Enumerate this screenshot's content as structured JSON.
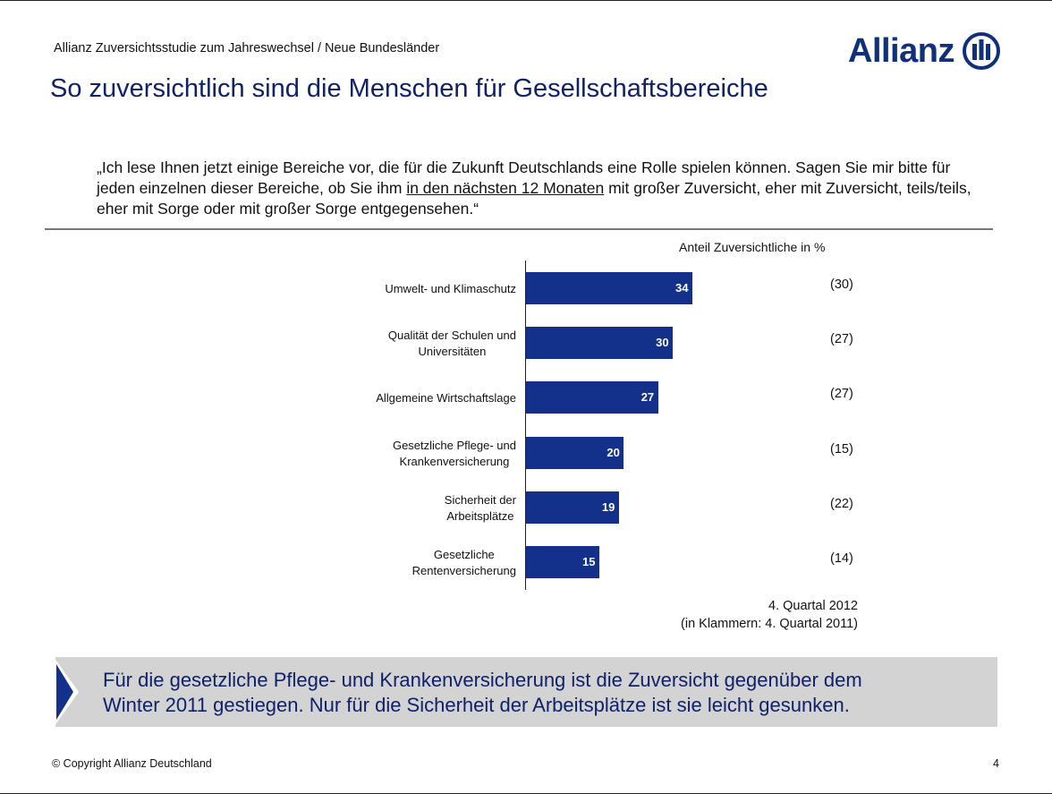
{
  "header": {
    "subtitle": "Allianz Zuversichtsstudie zum Jahreswechsel / Neue Bundesländer",
    "title": "So zuversichtlich sind die Menschen für Gesellschaftsbereiche",
    "logo_text": "Allianz"
  },
  "question": {
    "part1": "„Ich lese Ihnen jetzt einige Bereiche vor, die für die Zukunft Deutschlands eine Rolle spielen können. Sagen Sie mir bitte für jeden einzelnen dieser Bereiche, ob Sie ihm ",
    "underlined": "in den nächsten 12 Monaten",
    "part2": " mit großer Zuversicht, eher mit Zuversicht, teils/teils, eher mit Sorge oder mit großer Sorge entgegensehen.“"
  },
  "chart_data": {
    "type": "bar",
    "orientation": "horizontal",
    "title": "Anteil Zuversichtliche in %",
    "categories": [
      "Umwelt- und Klimaschutz",
      "Qualität der Schulen und Universitäten",
      "Allgemeine Wirtschaftslage",
      "Gesetzliche Pflege- und Krankenversicherung",
      "Sicherheit der Arbeitsplätze",
      "Gesetzliche Rentenversicherung"
    ],
    "category_lines": [
      [
        "Umwelt- und Klimaschutz"
      ],
      [
        "Qualität der Schulen und",
        "Universitäten"
      ],
      [
        "Allgemeine Wirtschaftslage"
      ],
      [
        "Gesetzliche Pflege- und",
        "Krankenversicherung"
      ],
      [
        "Sicherheit der",
        "Arbeitsplätze"
      ],
      [
        "Gesetzliche",
        "Rentenversicherung"
      ]
    ],
    "series": [
      {
        "name": "4. Quartal 2012",
        "values": [
          34,
          30,
          27,
          20,
          19,
          15
        ]
      },
      {
        "name": "4. Quartal 2011",
        "values": [
          30,
          27,
          27,
          15,
          22,
          14
        ]
      }
    ],
    "previous_labels": [
      "(30)",
      "(27)",
      "(27)",
      "(15)",
      "(22)",
      "(14)"
    ],
    "bar_color": "#13318a",
    "note_lines": [
      "4. Quartal 2012",
      "(in Klammern: 4. Quartal 2011)"
    ]
  },
  "callout": {
    "line1": "Für die gesetzliche Pflege- und Krankenversicherung ist die Zuversicht gegenüber dem",
    "line2": "Winter 2011 gestiegen. Nur für die Sicherheit der Arbeitsplätze ist sie leicht gesunken."
  },
  "footer": {
    "copyright": "© Copyright Allianz Deutschland",
    "page": "4"
  }
}
